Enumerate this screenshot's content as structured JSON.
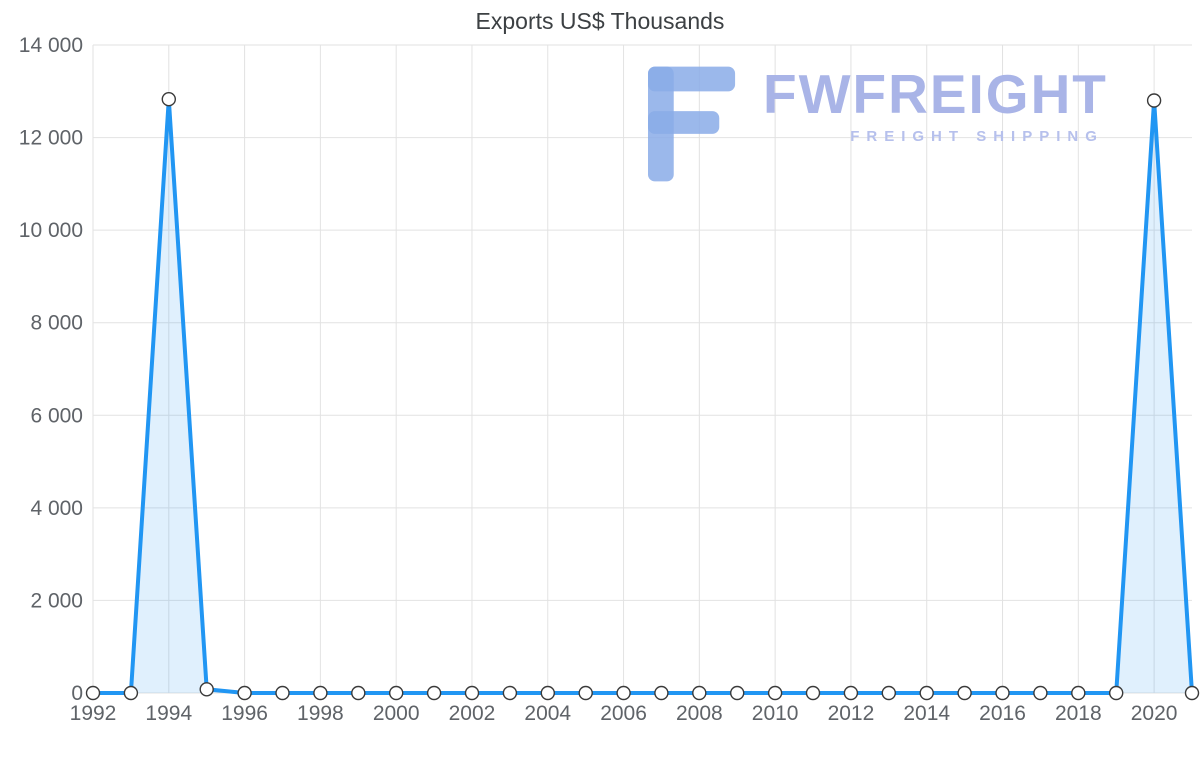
{
  "chart_data": {
    "type": "area",
    "title": "Exports US$ Thousands",
    "x": [
      1992,
      1993,
      1994,
      1995,
      1996,
      1997,
      1998,
      1999,
      2000,
      2001,
      2002,
      2003,
      2004,
      2005,
      2006,
      2007,
      2008,
      2009,
      2010,
      2011,
      2012,
      2013,
      2014,
      2015,
      2016,
      2017,
      2018,
      2019,
      2020,
      2021
    ],
    "values": [
      0,
      0,
      12830,
      80,
      0,
      0,
      0,
      0,
      0,
      0,
      0,
      0,
      0,
      0,
      0,
      0,
      0,
      0,
      0,
      0,
      0,
      0,
      0,
      0,
      0,
      0,
      0,
      0,
      12800,
      0
    ],
    "ylim": [
      0,
      14000
    ],
    "grid": true,
    "legend": "none",
    "line_color": "#2196F3",
    "fill_color": "rgba(33,150,243,0.14)",
    "marker_fill": "#ffffff",
    "marker_stroke": "#3a3a3a",
    "y_ticks": [
      {
        "v": 0,
        "label": "0"
      },
      {
        "v": 2000,
        "label": "2 000"
      },
      {
        "v": 4000,
        "label": "4 000"
      },
      {
        "v": 6000,
        "label": "6 000"
      },
      {
        "v": 8000,
        "label": "8 000"
      },
      {
        "v": 10000,
        "label": "10 000"
      },
      {
        "v": 12000,
        "label": "12 000"
      },
      {
        "v": 14000,
        "label": "14 000"
      }
    ],
    "x_tick_labels": [
      "1992",
      "1994",
      "1996",
      "1998",
      "2000",
      "2002",
      "2004",
      "2006",
      "2008",
      "2010",
      "2012",
      "2014",
      "2016",
      "2018",
      "2020"
    ]
  },
  "watermark": {
    "brand": "FWFREIGHT",
    "tagline": "FREIGHT SHIPPING",
    "logo_color": "#8aace8"
  }
}
